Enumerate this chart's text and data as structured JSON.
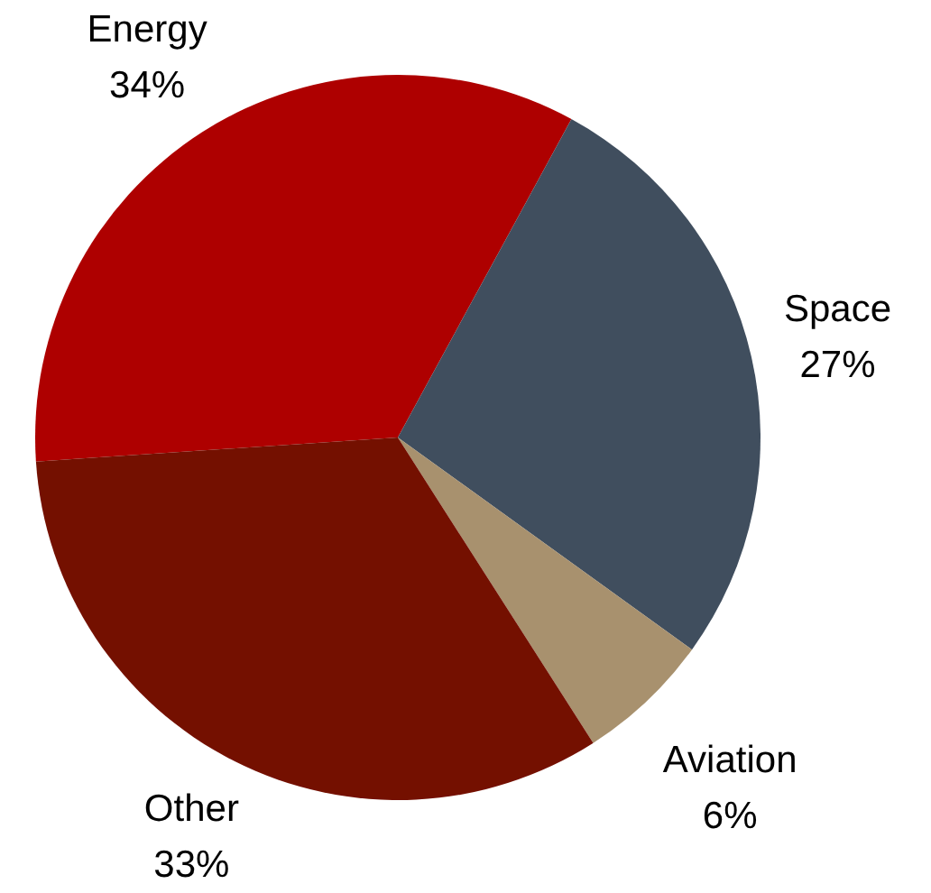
{
  "chart_data": {
    "type": "pie",
    "categories": [
      "Energy",
      "Space",
      "Aviation",
      "Other"
    ],
    "values": [
      34,
      27,
      6,
      33
    ],
    "colors": [
      "#ae0000",
      "#404e5e",
      "#a8916e",
      "#741000"
    ],
    "value_labels": [
      "34%",
      "27%",
      "6%",
      "33%"
    ]
  }
}
